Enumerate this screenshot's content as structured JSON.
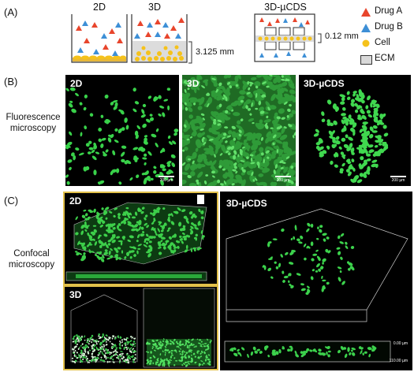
{
  "panels": {
    "a": {
      "label": "(A)",
      "dish_2d": "2D",
      "dish_3d": "3D",
      "chip": "3D-µCDS",
      "dim_3d": "3.125 mm",
      "dim_chip": "0.12 mm",
      "legend": [
        {
          "name": "Drug A",
          "icon": "red-triangle-icon",
          "color": "#e8452c"
        },
        {
          "name": "Drug B",
          "icon": "blue-triangle-icon",
          "color": "#3d8fd6"
        },
        {
          "name": "Cell",
          "icon": "yellow-dot-icon",
          "color": "#f5c21b"
        },
        {
          "name": "ECM",
          "icon": "gray-box-icon",
          "color": "#d9d9d9"
        }
      ]
    },
    "b": {
      "label": "(B)",
      "row_title": "Fluorescence\nmicroscopy",
      "images": [
        {
          "title": "2D",
          "scale": "200 µm"
        },
        {
          "title": "3D",
          "scale": "200 µm"
        },
        {
          "title": "3D-µCDS",
          "scale": "200 µm"
        }
      ]
    },
    "c": {
      "label": "(C)",
      "row_title": "Confocal\nmicroscopy",
      "img_2d": "2D",
      "img_3d": "3D",
      "img_chip": "3D-µCDS",
      "chip_depth_top": "0.00 µm",
      "chip_depth_bottom": "110.00 µm"
    }
  }
}
